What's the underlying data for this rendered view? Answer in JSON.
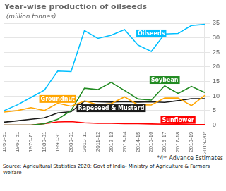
{
  "chart_data": {
    "type": "line",
    "title": "Year-wise production of oilseeds",
    "subtitle": " (million tonnes)",
    "footnote": "*4ᵗʰ Advance Estimates",
    "source": "Source: Agricultural Statistics 2020; Govt of India- Ministry of Agriculture & Farmers Welfare",
    "categories": [
      "1950-51",
      "1960-61",
      "1970-71",
      "1980-81",
      "1990-91",
      "2000-01",
      "2010-11",
      "2011-12",
      "2012-13",
      "2013-14",
      "2014-15",
      "2015-16",
      "2016-17",
      "2017-18",
      "2018-19",
      "2019-20*"
    ],
    "series": [
      {
        "name": "Oilseeds",
        "color": "#00BFFF",
        "values": [
          5.0,
          7.0,
          9.5,
          12.0,
          18.6,
          18.4,
          32.5,
          29.8,
          30.9,
          32.8,
          27.5,
          25.3,
          31.3,
          31.5,
          34.2,
          34.6
        ]
      },
      {
        "name": "Groundnut",
        "color": "#FFA500",
        "values": [
          4.5,
          5.0,
          6.0,
          5.0,
          7.5,
          6.5,
          8.3,
          7.0,
          7.4,
          9.7,
          7.0,
          6.9,
          9.3,
          9.3,
          6.7,
          10.2
        ]
      },
      {
        "name": "Soybean",
        "color": "#228B22",
        "values": [
          0.0,
          0.0,
          0.0,
          0.5,
          2.0,
          5.0,
          12.7,
          12.2,
          14.7,
          11.9,
          9.0,
          8.6,
          13.5,
          10.9,
          13.3,
          11.2
        ]
      },
      {
        "name": "Rapeseed & Mustard",
        "color": "#1a1a1a",
        "values": [
          1.0,
          1.5,
          2.0,
          2.5,
          4.2,
          4.6,
          8.2,
          8.0,
          7.9,
          8.1,
          7.9,
          8.0,
          7.8,
          8.4,
          9.1,
          9.1
        ]
      },
      {
        "name": "Sunflower",
        "color": "#FF0000",
        "values": [
          0.0,
          0.0,
          0.0,
          0.5,
          1.1,
          1.2,
          0.8,
          0.6,
          0.6,
          0.5,
          0.5,
          0.4,
          0.3,
          0.4,
          0.2,
          0.2
        ]
      }
    ],
    "annotations": [
      {
        "text": "Oilseeds",
        "x": "2015-16",
        "y": 31.5,
        "color": "#00BFFF"
      },
      {
        "text": "Groundnut",
        "x": "1990-91",
        "y": 9.0,
        "color": "#FFA500"
      },
      {
        "text": "Soybean",
        "x": "2016-17",
        "y": 15.5,
        "color": "#228B22"
      },
      {
        "text": "Rapeseed & Mustard",
        "x": "2012-13",
        "y": 5.8,
        "color": "#1a1a1a"
      },
      {
        "text": "Sunflower",
        "x": "2017-18",
        "y": 1.8,
        "color": "#FF0000"
      }
    ],
    "ylim": [
      0,
      35
    ],
    "yticks": [
      0,
      5,
      10,
      15,
      20,
      25,
      30,
      35
    ],
    "grid": true
  }
}
